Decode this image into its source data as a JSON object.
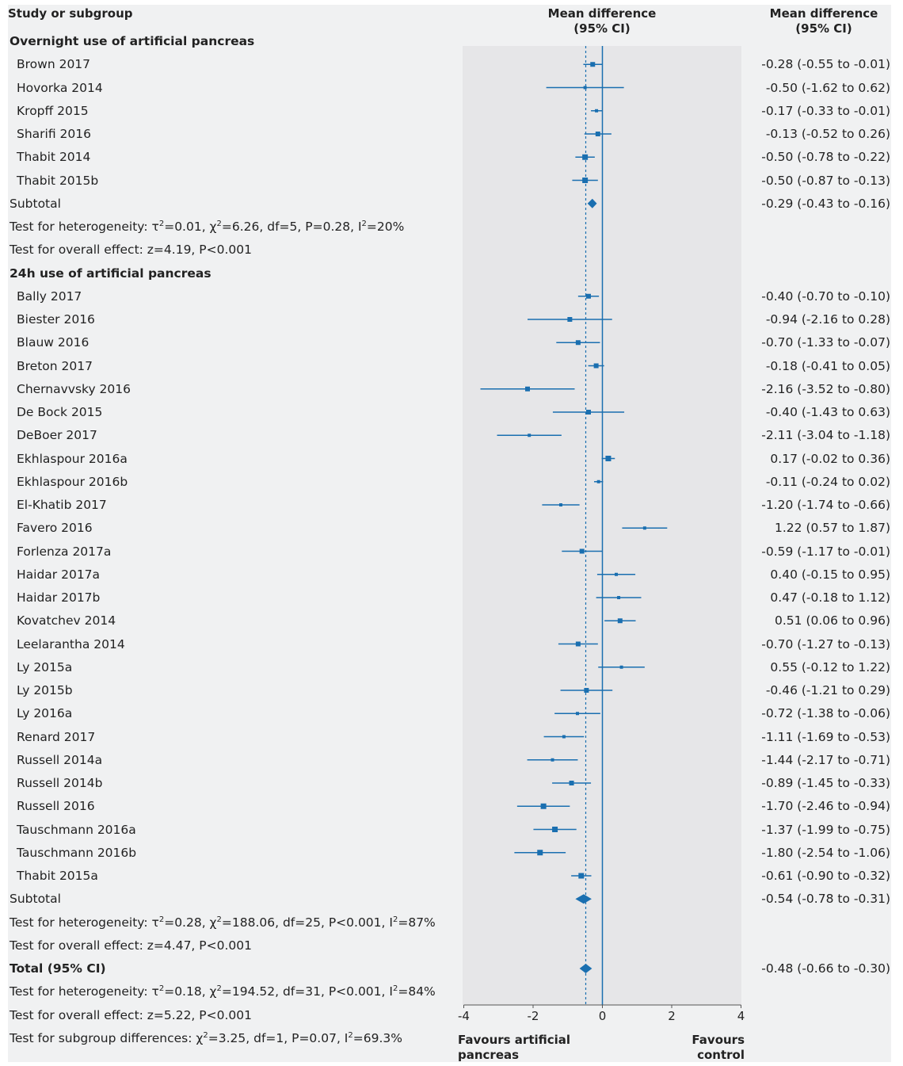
{
  "header": {
    "study_col": "Study or subgroup",
    "plot_col_line1": "Mean difference",
    "plot_col_line2": "(95% CI)",
    "ci_col_line1": "Mean difference",
    "ci_col_line2": "(95% CI)"
  },
  "footer": {
    "favours_left_line1": "Favours artificial",
    "favours_left_line2": "pancreas",
    "favours_right_line1": "Favours",
    "favours_right_line2": "control"
  },
  "rows": [
    {
      "kind": "heading",
      "label": "Overnight use of artificial pancreas"
    },
    {
      "kind": "study",
      "label": "Brown 2017",
      "est": -0.28,
      "lo": -0.55,
      "hi": -0.01,
      "ci": "-0.28 (-0.55 to -0.01)",
      "w": 2
    },
    {
      "kind": "study",
      "label": "Hovorka 2014",
      "est": -0.5,
      "lo": -1.62,
      "hi": 0.62,
      "ci": "-0.50 (-1.62 to 0.62)",
      "w": 1
    },
    {
      "kind": "study",
      "label": "Kropff 2015",
      "est": -0.17,
      "lo": -0.33,
      "hi": -0.01,
      "ci": "-0.17 (-0.33 to -0.01)",
      "w": 1
    },
    {
      "kind": "study",
      "label": "Sharifi 2016",
      "est": -0.13,
      "lo": -0.52,
      "hi": 0.26,
      "ci": "-0.13 (-0.52 to 0.26)",
      "w": 2
    },
    {
      "kind": "study",
      "label": "Thabit 2014",
      "est": -0.5,
      "lo": -0.78,
      "hi": -0.22,
      "ci": "-0.50 (-0.78 to -0.22)",
      "w": 3
    },
    {
      "kind": "study",
      "label": "Thabit 2015b",
      "est": -0.5,
      "lo": -0.87,
      "hi": -0.13,
      "ci": "-0.50 (-0.87 to -0.13)",
      "w": 3
    },
    {
      "kind": "subtotal",
      "label": "Subtotal",
      "est": -0.29,
      "lo": -0.43,
      "hi": -0.16,
      "ci": "-0.29 (-0.43 to -0.16)"
    },
    {
      "kind": "het",
      "pre": "Test for heterogeneity: τ",
      "sup1": "2",
      "mid1": "=0.01, χ",
      "sup2": "2",
      "mid2": "=6.26, df=5, P=0.28, I",
      "sup3": "2",
      "post": "=20%"
    },
    {
      "kind": "text",
      "label": "Test for overall effect: z=4.19, P<0.001"
    },
    {
      "kind": "heading",
      "label": "24h use of artificial pancreas"
    },
    {
      "kind": "study",
      "label": "Bally 2017",
      "est": -0.4,
      "lo": -0.7,
      "hi": -0.1,
      "ci": "-0.40 (-0.70 to -0.10)",
      "w": 2
    },
    {
      "kind": "study",
      "label": "Biester 2016",
      "est": -0.94,
      "lo": -2.16,
      "hi": 0.28,
      "ci": "-0.94 (-2.16 to 0.28)",
      "w": 2
    },
    {
      "kind": "study",
      "label": "Blauw 2016",
      "est": -0.7,
      "lo": -1.33,
      "hi": -0.07,
      "ci": "-0.70 (-1.33 to -0.07)",
      "w": 2
    },
    {
      "kind": "study",
      "label": "Breton 2017",
      "est": -0.18,
      "lo": -0.41,
      "hi": 0.05,
      "ci": "-0.18 (-0.41 to 0.05)",
      "w": 2
    },
    {
      "kind": "study",
      "label": "Chernavvsky 2016",
      "est": -2.16,
      "lo": -3.52,
      "hi": -0.8,
      "ci": "-2.16 (-3.52 to -0.80)",
      "w": 2
    },
    {
      "kind": "study",
      "label": "De Bock 2015",
      "est": -0.4,
      "lo": -1.43,
      "hi": 0.63,
      "ci": "-0.40 (-1.43 to 0.63)",
      "w": 2
    },
    {
      "kind": "study",
      "label": "DeBoer 2017",
      "est": -2.11,
      "lo": -3.04,
      "hi": -1.18,
      "ci": "-2.11 (-3.04 to -1.18)",
      "w": 1
    },
    {
      "kind": "study",
      "label": "Ekhlaspour 2016a",
      "est": 0.17,
      "lo": -0.02,
      "hi": 0.36,
      "ci": "0.17 (-0.02 to 0.36)",
      "w": 3
    },
    {
      "kind": "study",
      "label": "Ekhlaspour 2016b",
      "est": -0.11,
      "lo": -0.24,
      "hi": 0.02,
      "ci": "-0.11 (-0.24 to 0.02)",
      "w": 1
    },
    {
      "kind": "study",
      "label": "El-Khatib 2017",
      "est": -1.2,
      "lo": -1.74,
      "hi": -0.66,
      "ci": "-1.20 (-1.74 to -0.66)",
      "w": 1
    },
    {
      "kind": "study",
      "label": "Favero 2016",
      "est": 1.22,
      "lo": 0.57,
      "hi": 1.87,
      "ci": "1.22 (0.57 to 1.87)",
      "w": 1
    },
    {
      "kind": "study",
      "label": "Forlenza 2017a",
      "est": -0.59,
      "lo": -1.17,
      "hi": -0.01,
      "ci": "-0.59 (-1.17 to -0.01)",
      "w": 2
    },
    {
      "kind": "study",
      "label": "Haidar 2017a",
      "est": 0.4,
      "lo": -0.15,
      "hi": 0.95,
      "ci": "0.40 (-0.15 to 0.95)",
      "w": 1
    },
    {
      "kind": "study",
      "label": "Haidar 2017b",
      "est": 0.47,
      "lo": -0.18,
      "hi": 1.12,
      "ci": "0.47 (-0.18 to 1.12)",
      "w": 1
    },
    {
      "kind": "study",
      "label": "Kovatchev 2014",
      "est": 0.51,
      "lo": 0.06,
      "hi": 0.96,
      "ci": "0.51 (0.06 to 0.96)",
      "w": 2
    },
    {
      "kind": "study",
      "label": "Leelarantha 2014",
      "est": -0.7,
      "lo": -1.27,
      "hi": -0.13,
      "ci": "-0.70 (-1.27 to -0.13)",
      "w": 2
    },
    {
      "kind": "study",
      "label": "Ly 2015a",
      "est": 0.55,
      "lo": -0.12,
      "hi": 1.22,
      "ci": "0.55 (-0.12 to 1.22)",
      "w": 1
    },
    {
      "kind": "study",
      "label": "Ly 2015b",
      "est": -0.46,
      "lo": -1.21,
      "hi": 0.29,
      "ci": "-0.46 (-1.21 to 0.29)",
      "w": 2
    },
    {
      "kind": "study",
      "label": "Ly 2016a",
      "est": -0.72,
      "lo": -1.38,
      "hi": -0.06,
      "ci": "-0.72 (-1.38 to -0.06)",
      "w": 1
    },
    {
      "kind": "study",
      "label": "Renard 2017",
      "est": -1.11,
      "lo": -1.69,
      "hi": -0.53,
      "ci": "-1.11 (-1.69 to -0.53)",
      "w": 1
    },
    {
      "kind": "study",
      "label": "Russell 2014a",
      "est": -1.44,
      "lo": -2.17,
      "hi": -0.71,
      "ci": "-1.44 (-2.17 to -0.71)",
      "w": 1
    },
    {
      "kind": "study",
      "label": "Russell 2014b",
      "est": -0.89,
      "lo": -1.45,
      "hi": -0.33,
      "ci": "-0.89 (-1.45 to -0.33)",
      "w": 2
    },
    {
      "kind": "study",
      "label": "Russell 2016",
      "est": -1.7,
      "lo": -2.46,
      "hi": -0.94,
      "ci": "-1.70 (-2.46 to -0.94)",
      "w": 3
    },
    {
      "kind": "study",
      "label": "Tauschmann 2016a",
      "est": -1.37,
      "lo": -1.99,
      "hi": -0.75,
      "ci": "-1.37 (-1.99 to -0.75)",
      "w": 3
    },
    {
      "kind": "study",
      "label": "Tauschmann 2016b",
      "est": -1.8,
      "lo": -2.54,
      "hi": -1.06,
      "ci": "-1.80 (-2.54 to -1.06)",
      "w": 3
    },
    {
      "kind": "study",
      "label": "Thabit 2015a",
      "est": -0.61,
      "lo": -0.9,
      "hi": -0.32,
      "ci": "-0.61 (-0.90 to -0.32)",
      "w": 3
    },
    {
      "kind": "subtotal",
      "label": "Subtotal",
      "est": -0.54,
      "lo": -0.78,
      "hi": -0.31,
      "ci": "-0.54 (-0.78 to -0.31)"
    },
    {
      "kind": "het",
      "pre": "Test for heterogeneity: τ",
      "sup1": "2",
      "mid1": "=0.28, χ",
      "sup2": "2",
      "mid2": "=188.06, df=25, P<0.001, I",
      "sup3": "2",
      "post": "=87%"
    },
    {
      "kind": "text",
      "label": "Test for overall effect: z=4.47, P<0.001"
    },
    {
      "kind": "total",
      "label": "Total (95% CI)",
      "est": -0.48,
      "lo": -0.66,
      "hi": -0.3,
      "ci": "-0.48 (-0.66 to -0.30)"
    },
    {
      "kind": "het",
      "pre": "Test for heterogeneity: τ",
      "sup1": "2",
      "mid1": "=0.18, χ",
      "sup2": "2",
      "mid2": "=194.52, df=31, P<0.001, I",
      "sup3": "2",
      "post": "=84%"
    },
    {
      "kind": "text",
      "label": "Test for overall effect: z=5.22, P<0.001"
    },
    {
      "kind": "sub",
      "pre": "Test for subgroup differences: χ",
      "sup1": "2",
      "mid1": "=3.25, df=1, P=0.07, I",
      "sup2": "2",
      "post": "=69.3%"
    }
  ],
  "chart_data": {
    "type": "forest",
    "xlim": [
      -4,
      4
    ],
    "ticks": [
      -4,
      -2,
      0,
      2,
      4
    ],
    "tick_labels": [
      "-4",
      "-2",
      "0",
      "2",
      "4"
    ],
    "reference_line": 0,
    "pooled_line": -0.48,
    "colors": {
      "marker": "#1a6fb0",
      "background": "#f0f1f2",
      "plot_area": "#e6e6e8"
    }
  }
}
